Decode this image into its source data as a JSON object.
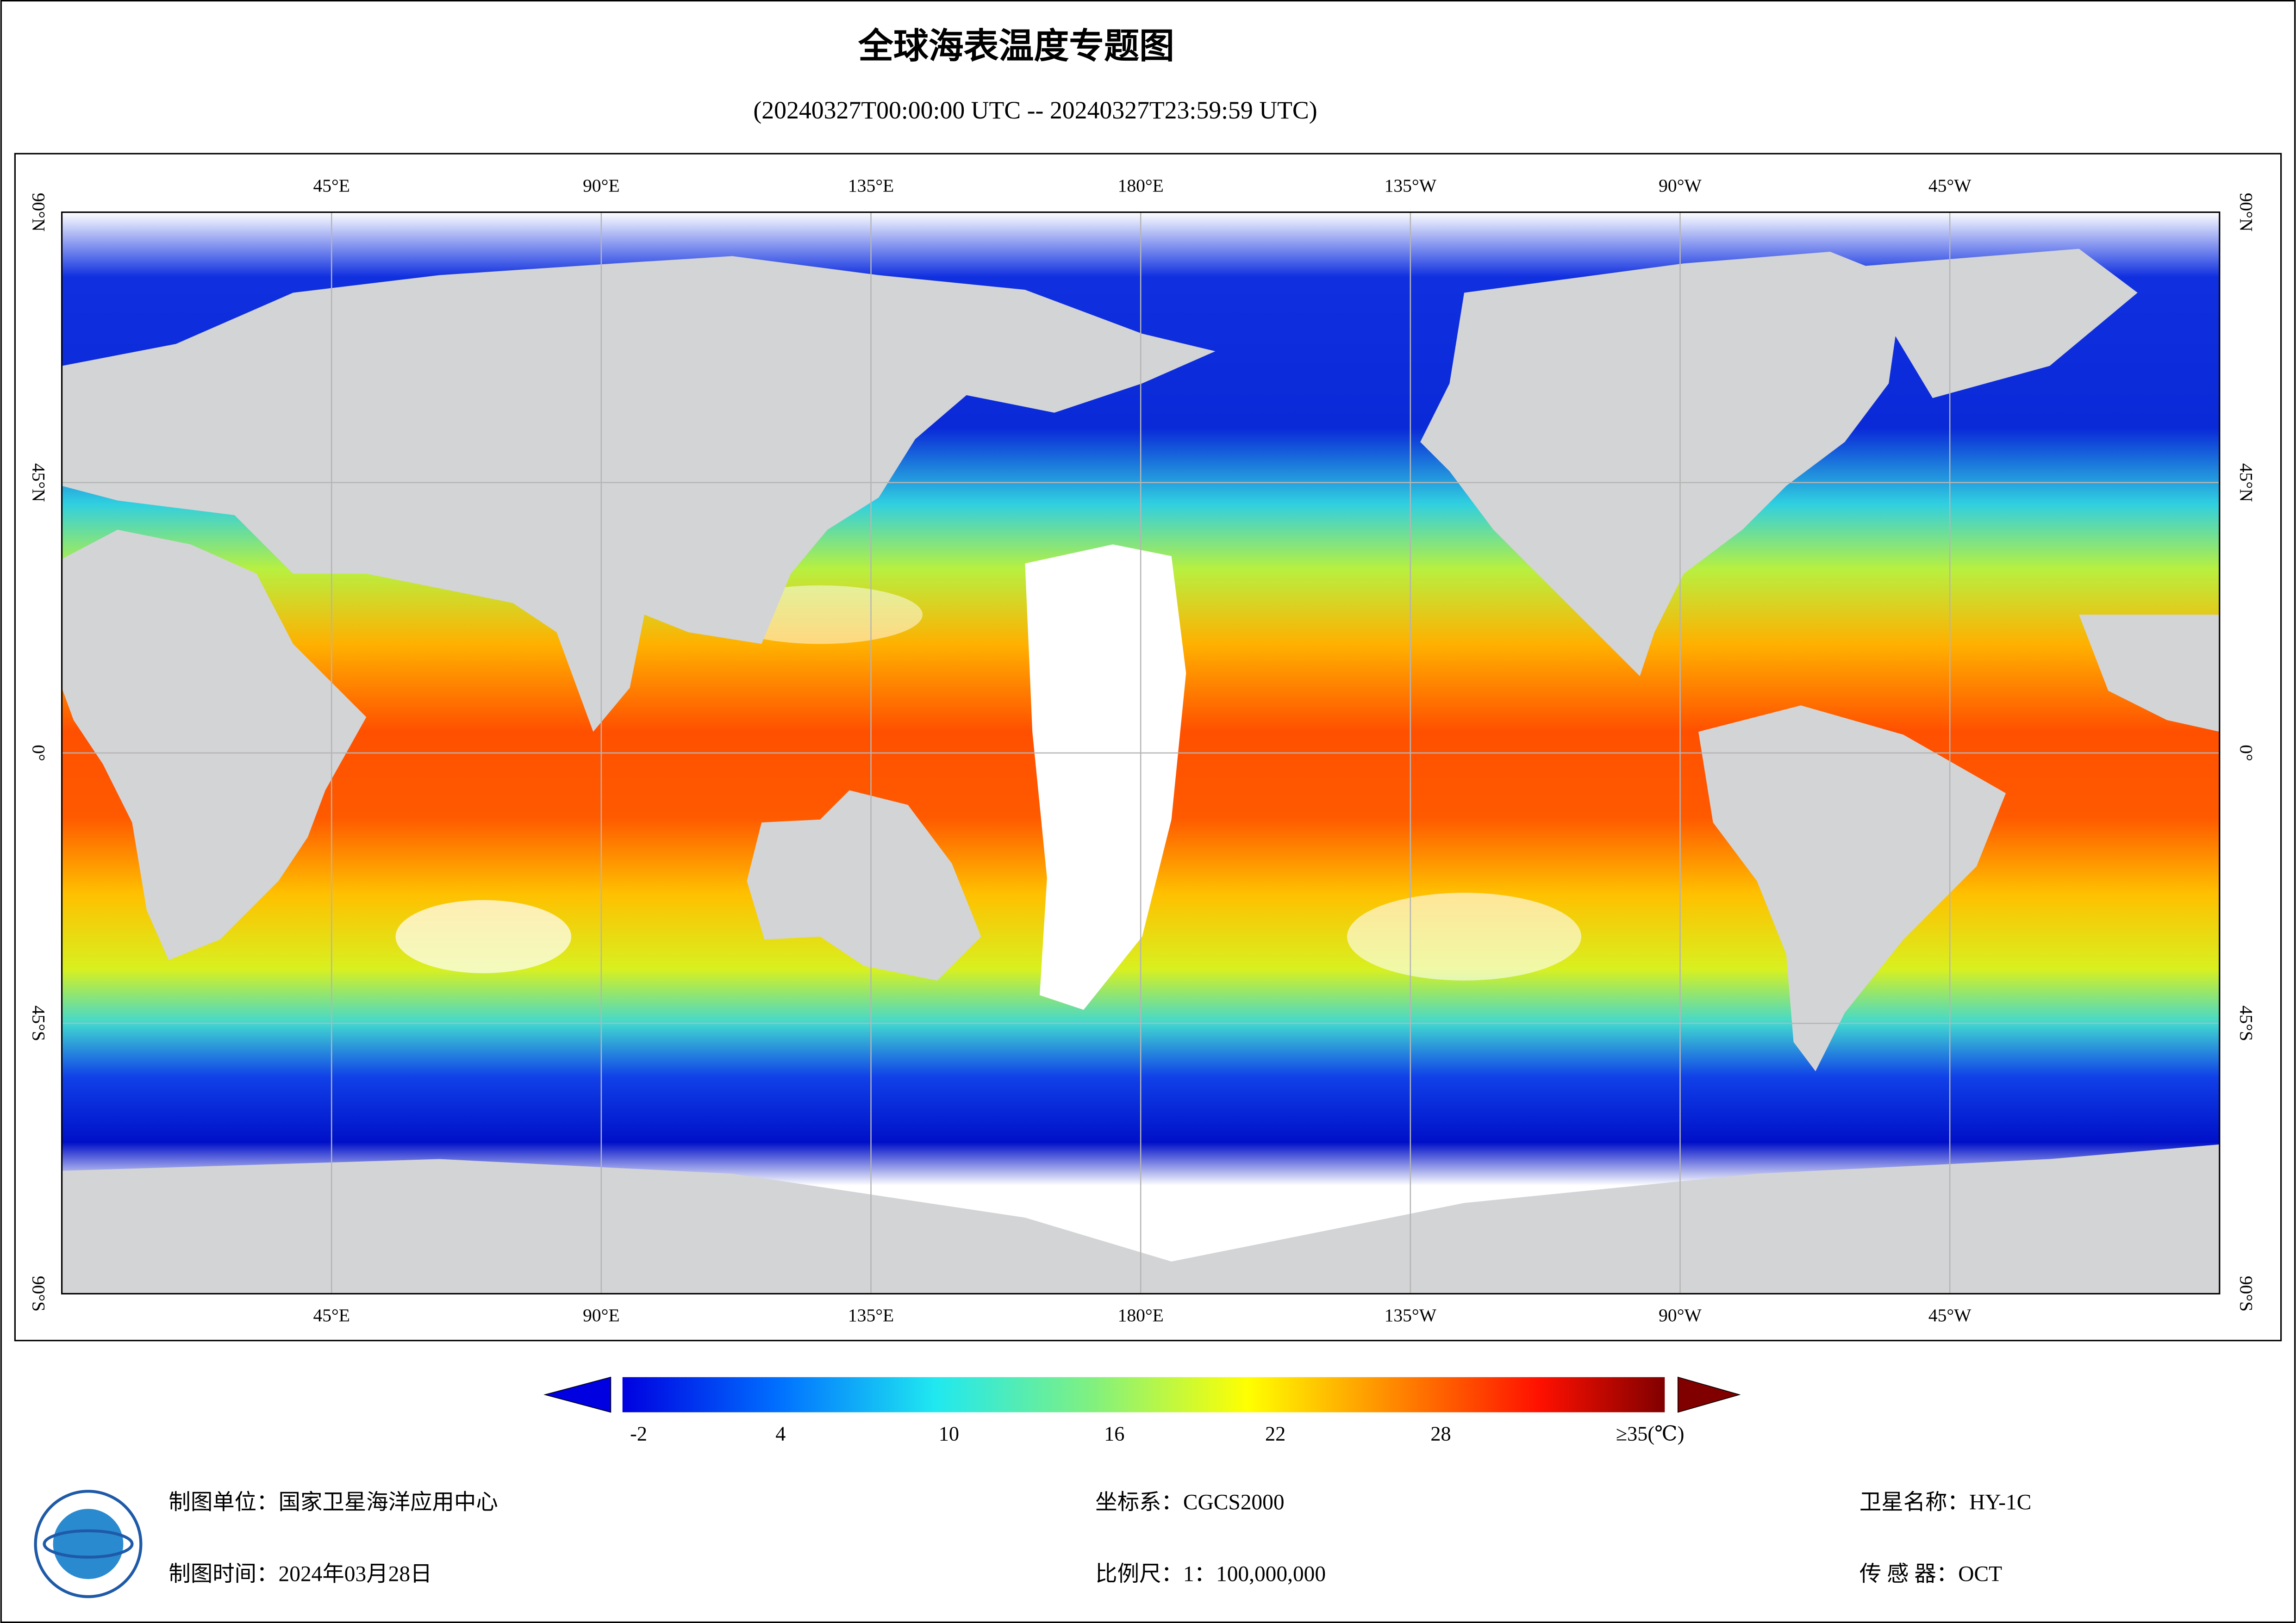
{
  "title": "全球海表温度专题图",
  "subtitle": "(20240327T00:00:00 UTC -- 20240327T23:59:59 UTC)",
  "map": {
    "longitude_labels": [
      "45°E",
      "90°E",
      "135°E",
      "180°E",
      "135°W",
      "90°W",
      "45°W"
    ],
    "latitude_labels": [
      "90°N",
      "45°N",
      "0°",
      "45°S",
      "90°S"
    ]
  },
  "colorbar": {
    "tick_labels": [
      "-2",
      "4",
      "10",
      "16",
      "22",
      "28",
      "≥35(℃)"
    ]
  },
  "footer": {
    "mapping_unit": "制图单位：国家卫星海洋应用中心",
    "mapping_time": "制图时间：2024年03月28日",
    "coordinate_system": "坐标系：CGCS2000",
    "scale": "比例尺：1：100,000,000",
    "satellite": "卫星名称：HY-1C",
    "sensor": "传 感 器：OCT"
  }
}
